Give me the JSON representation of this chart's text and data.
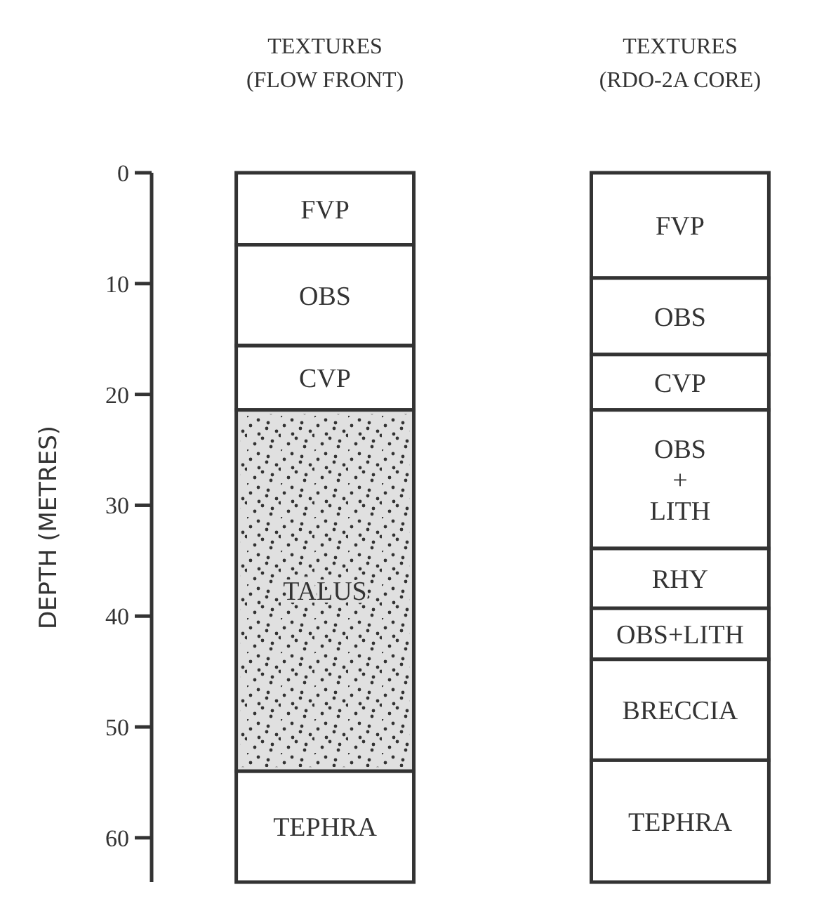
{
  "chart_data": {
    "type": "bar",
    "stacked": true,
    "ylabel": "DEPTH (METRES)",
    "categories": [
      "TEXTURES (FLOW FRONT)",
      "TEXTURES (RDO-2A CORE)"
    ],
    "ylim": [
      64,
      0
    ],
    "yticks": [
      0,
      10,
      20,
      30,
      40,
      50,
      60
    ],
    "series": [
      {
        "name": "FVP",
        "color": "#ffffff",
        "values": [
          6.5,
          null
        ]
      },
      {
        "name": "OBS",
        "color": "#ffffff",
        "values": [
          9.1,
          null
        ]
      },
      {
        "name": "CVP",
        "color": "#ffffff",
        "values": [
          5.8,
          null
        ]
      },
      {
        "name": "TALUS",
        "color": "#e0e0e0",
        "values": [
          32.6,
          null
        ]
      },
      {
        "name": "TEPHRA",
        "color": "#ffffff",
        "values": [
          10,
          null
        ]
      },
      {
        "name": "FVP",
        "color": "#ffffff",
        "values": [
          null,
          9.5
        ]
      },
      {
        "name": "OBS",
        "color": "#ffffff",
        "values": [
          null,
          6.9
        ]
      },
      {
        "name": "CVP",
        "color": "#ffffff",
        "values": [
          null,
          5
        ]
      },
      {
        "name": "OBS + LITH",
        "color": "#ffffff",
        "values": [
          null,
          12.5
        ]
      },
      {
        "name": "RHY",
        "color": "#ffffff",
        "values": [
          null,
          5.4
        ]
      },
      {
        "name": "OBS+LITH",
        "color": "#ffffff",
        "values": [
          null,
          4.6
        ]
      },
      {
        "name": "BRECCIA",
        "color": "#ffffff",
        "values": [
          null,
          9.1
        ]
      },
      {
        "name": "TEPHRA",
        "color": "#ffffff",
        "values": [
          null,
          11
        ]
      }
    ]
  }
}
